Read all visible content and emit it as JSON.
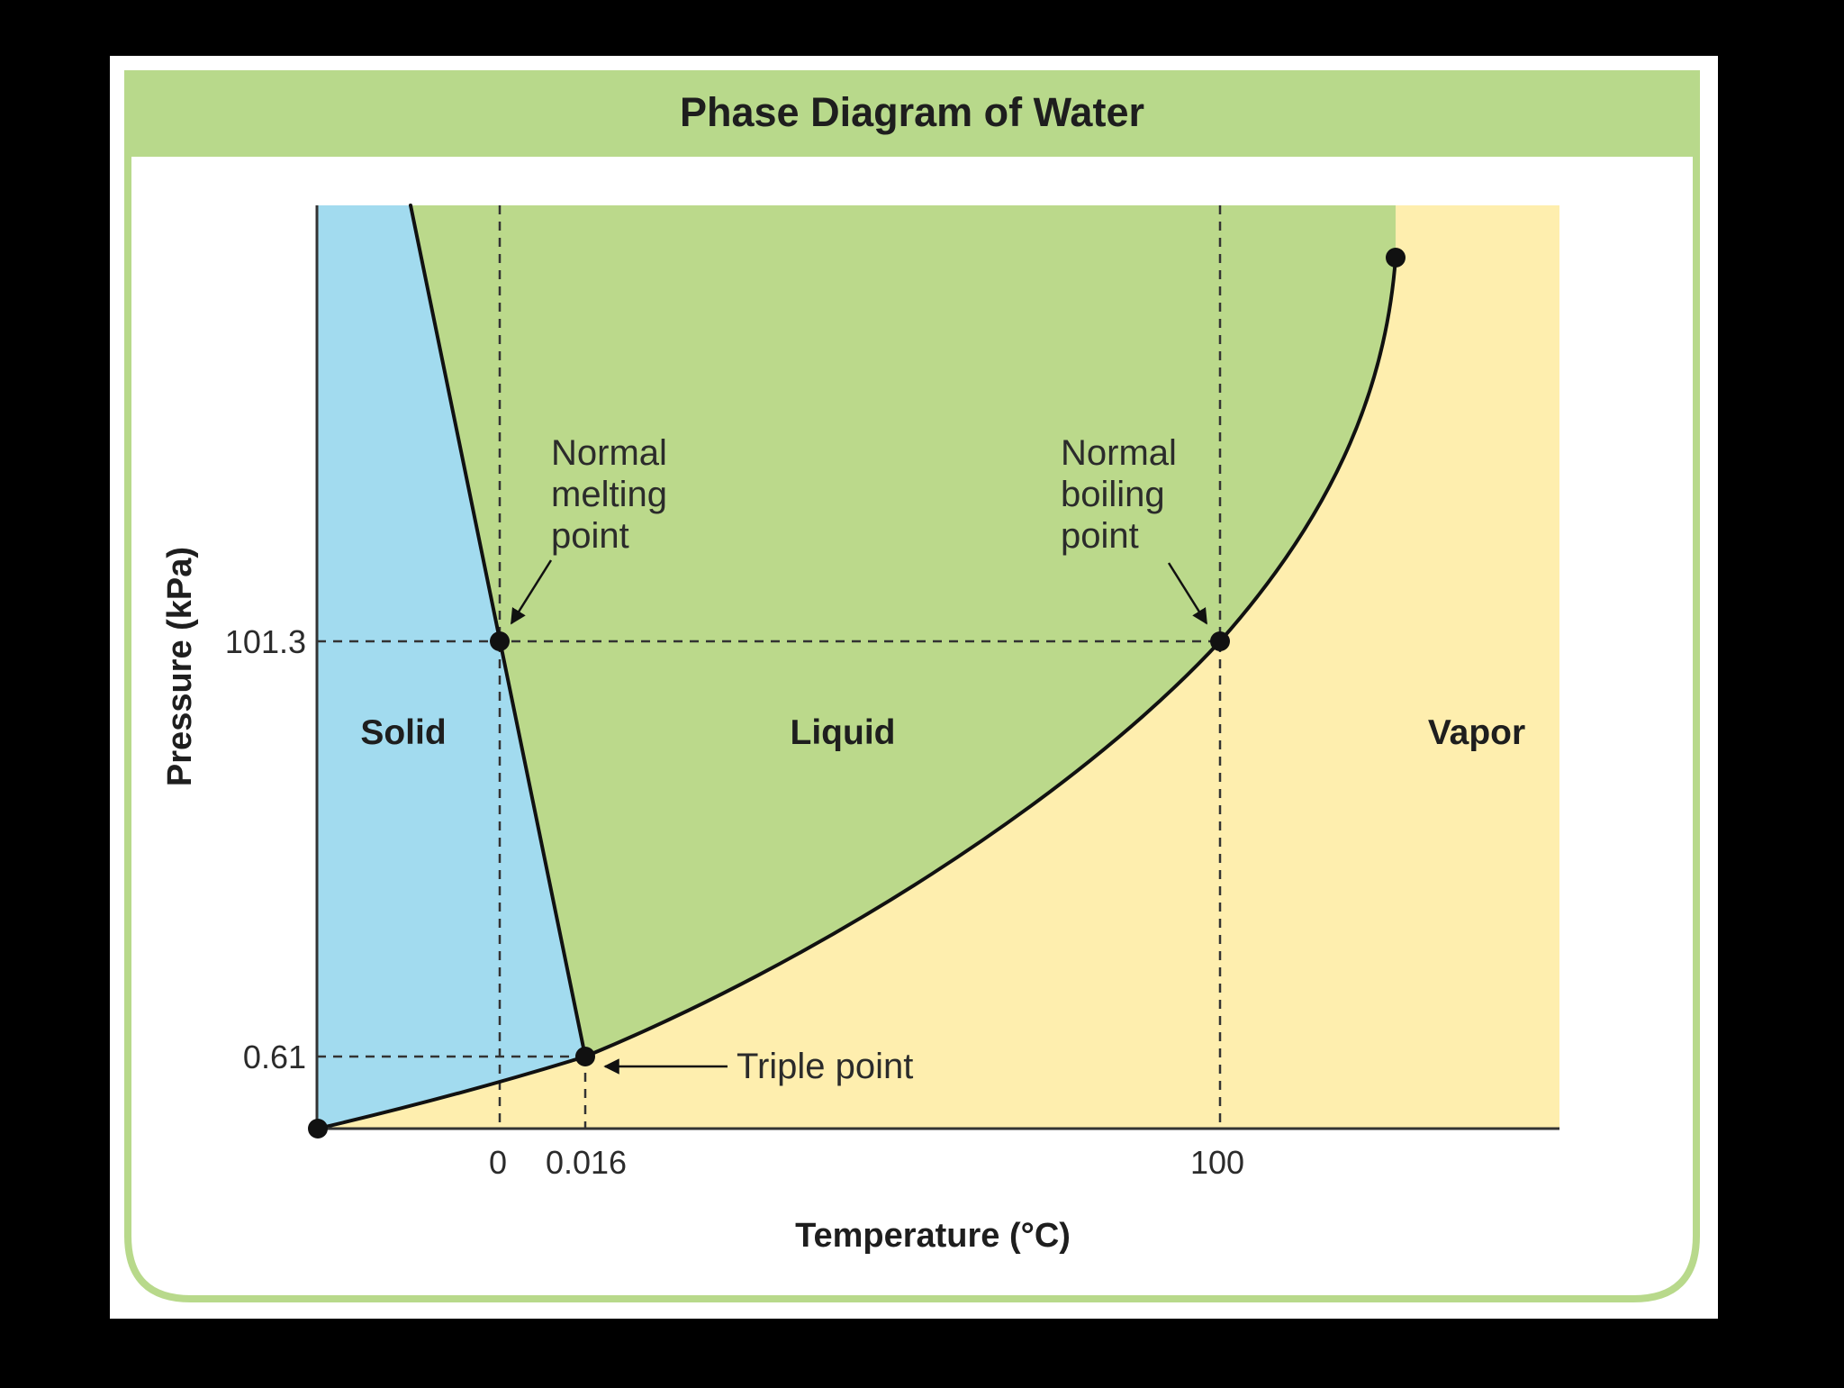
{
  "figure": {
    "title": "Phase Diagram of Water",
    "xlabel": "Temperature (°C)",
    "ylabel": "Pressure (kPa)",
    "x_ticks": [
      "0",
      "0.016",
      "100"
    ],
    "y_ticks": [
      "101.3",
      "0.61"
    ],
    "regions": {
      "solid": "Solid",
      "liquid": "Liquid",
      "vapor": "Vapor"
    },
    "annotations": {
      "melting": [
        "Normal",
        "melting",
        "point"
      ],
      "boiling": [
        "Normal",
        "boiling",
        "point"
      ],
      "triple": "Triple point"
    }
  },
  "colors": {
    "background": "#000000",
    "panel": "#ffffff",
    "header": "#b8d98b",
    "solid": "#a2dbef",
    "liquid": "#bbd98b",
    "vapor": "#feeeae",
    "curve": "#111111"
  }
}
